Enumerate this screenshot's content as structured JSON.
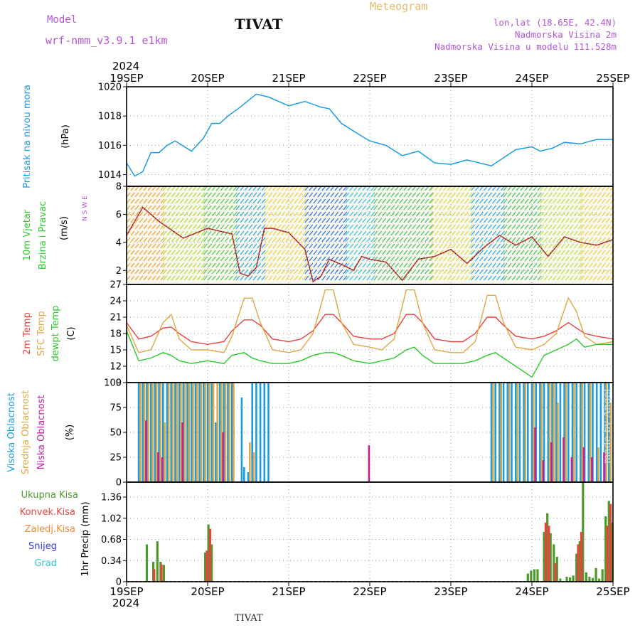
{
  "header": {
    "model_label": "Model",
    "model_name": "wrf-nmm_v3.9.1 e1km",
    "title": "TIVAT",
    "meteogram": "Meteogram",
    "lonlat": "lon,lat (18.65E, 42.4N)",
    "elevation": "Nadmorska Visina 2m",
    "model_elevation": "Nadmorska Visina u modelu 111.528m"
  },
  "footer": {
    "station": "TIVAT",
    "credit": "made by Angel"
  },
  "colors": {
    "pressure": "#1a9de0",
    "temp2m": "#e8433f",
    "sfc": "#e0a843",
    "dewpt": "#2cc92c",
    "high_cloud": "#1a9de0",
    "mid_cloud": "#e0a843",
    "low_cloud": "#c020a0",
    "total_precip": "#4c9a2a",
    "conv_precip": "#e8433f",
    "frz": "#f08a30",
    "snow": "#3a3ad8",
    "graupel": "#30c8c8"
  },
  "chart_data": [
    {
      "type": "line",
      "id": "pressure",
      "ylabel": [
        "Pritisak na nivou mora",
        "(hPa)"
      ],
      "ylim": [
        1013.2,
        1020
      ],
      "yticks": [
        1014,
        1016,
        1018,
        1020
      ],
      "x_days": [
        0,
        0.1,
        0.2,
        0.3,
        0.4,
        0.5,
        0.6,
        0.8,
        0.95,
        1.05,
        1.15,
        1.25,
        1.4,
        1.6,
        1.75,
        2.0,
        2.2,
        2.4,
        2.5,
        2.65,
        2.85,
        3.0,
        3.2,
        3.4,
        3.6,
        3.8,
        4.0,
        4.2,
        4.5,
        4.8,
        5.0,
        5.1,
        5.25,
        5.4,
        5.6,
        5.8,
        6.0
      ],
      "values": [
        1014.8,
        1013.9,
        1014.2,
        1015.5,
        1015.5,
        1016.0,
        1016.3,
        1015.6,
        1016.5,
        1017.5,
        1017.5,
        1018.0,
        1018.6,
        1019.5,
        1019.3,
        1018.7,
        1019.0,
        1018.6,
        1018.5,
        1017.5,
        1016.8,
        1016.3,
        1016.0,
        1015.3,
        1015.6,
        1014.8,
        1014.7,
        1015.0,
        1014.6,
        1015.7,
        1015.9,
        1015.6,
        1015.8,
        1016.2,
        1016.1,
        1016.4,
        1016.4
      ]
    },
    {
      "type": "line",
      "id": "wind",
      "ylabel": [
        "10m Vjetar",
        "Brzina i Pravac",
        "(m/s)"
      ],
      "compass": "N S W E",
      "ylim": [
        1,
        8
      ],
      "yticks": [
        2,
        4,
        6,
        8
      ],
      "x_days": [
        0,
        0.2,
        0.4,
        0.7,
        1.0,
        1.3,
        1.4,
        1.5,
        1.6,
        1.7,
        1.8,
        2.0,
        2.2,
        2.3,
        2.4,
        2.5,
        2.7,
        2.8,
        2.9,
        3.0,
        3.2,
        3.4,
        3.6,
        3.8,
        4.0,
        4.2,
        4.4,
        4.6,
        4.8,
        5.0,
        5.2,
        5.4,
        5.6,
        5.8,
        6.0
      ],
      "values": [
        4.5,
        6.5,
        5.5,
        4.3,
        5.0,
        4.6,
        1.8,
        1.6,
        2.2,
        5.0,
        5.0,
        4.7,
        3.5,
        1.2,
        1.6,
        2.8,
        2.3,
        2.0,
        3.0,
        2.8,
        2.6,
        1.3,
        2.8,
        3.0,
        3.5,
        2.5,
        3.6,
        4.5,
        3.8,
        4.4,
        3.0,
        4.4,
        4.0,
        3.8,
        4.2
      ]
    },
    {
      "type": "line",
      "id": "temperature",
      "ylabel": [
        "2m Temp",
        "SFC Temp",
        "dewpt Temp",
        "(C)"
      ],
      "ylim": [
        9,
        27
      ],
      "yticks": [
        9,
        12,
        15,
        18,
        21,
        24,
        27
      ],
      "x_days": [
        0,
        0.15,
        0.3,
        0.45,
        0.55,
        0.65,
        0.8,
        1.0,
        1.2,
        1.3,
        1.45,
        1.55,
        1.65,
        1.8,
        2.0,
        2.15,
        2.3,
        2.45,
        2.55,
        2.65,
        2.8,
        3.0,
        3.15,
        3.3,
        3.45,
        3.55,
        3.65,
        3.8,
        4.0,
        4.15,
        4.3,
        4.45,
        4.55,
        4.65,
        4.8,
        5.0,
        5.15,
        5.3,
        5.45,
        5.55,
        5.65,
        5.8,
        6.0
      ],
      "series": [
        {
          "name": "2m Temp",
          "values": [
            20.0,
            17.0,
            17.5,
            19.0,
            19.2,
            18.0,
            16.5,
            16.0,
            16.5,
            18.5,
            20.5,
            20.5,
            19.5,
            17.0,
            16.5,
            17.0,
            18.5,
            21.5,
            21.5,
            20.0,
            17.5,
            17.0,
            17.0,
            18.0,
            21.5,
            21.5,
            20.0,
            17.0,
            16.5,
            16.5,
            18.0,
            21.0,
            21.0,
            19.5,
            17.5,
            17.0,
            17.5,
            18.5,
            20.0,
            19.0,
            18.0,
            17.5,
            17.0
          ]
        },
        {
          "name": "SFC Temp",
          "values": [
            19.5,
            14.5,
            15.0,
            20.0,
            21.5,
            17.0,
            15.0,
            15.0,
            14.5,
            17.5,
            24.5,
            24.5,
            20.0,
            15.0,
            14.5,
            15.0,
            18.0,
            26.0,
            26.0,
            20.0,
            16.0,
            15.5,
            15.0,
            17.0,
            26.0,
            26.0,
            20.0,
            15.0,
            14.5,
            14.5,
            16.5,
            25.0,
            25.0,
            20.0,
            15.5,
            15.0,
            16.0,
            18.0,
            24.5,
            22.0,
            17.5,
            16.0,
            16.5
          ]
        },
        {
          "name": "dewpt Temp",
          "values": [
            18.5,
            13.0,
            13.5,
            14.5,
            14.0,
            13.0,
            12.5,
            13.0,
            12.5,
            14.0,
            14.5,
            13.5,
            13.0,
            12.5,
            12.5,
            13.0,
            14.0,
            14.5,
            14.5,
            14.0,
            13.0,
            12.5,
            13.0,
            13.5,
            15.0,
            15.5,
            14.0,
            12.5,
            12.5,
            12.5,
            13.0,
            14.0,
            14.5,
            13.5,
            12.0,
            10.0,
            14.0,
            15.0,
            16.0,
            17.0,
            15.5,
            16.0,
            16.0
          ]
        }
      ]
    },
    {
      "type": "bar",
      "id": "clouds",
      "ylabel": [
        "Visoka Oblacnost",
        "Srednja Oblacnost",
        "Niska Oblacnost",
        "(%)"
      ],
      "ylim": [
        0,
        100
      ],
      "yticks": [
        0,
        25,
        50,
        75,
        100
      ],
      "series": [
        {
          "name": "Visoka Oblacnost",
          "x_days": [
            0.15,
            0.2,
            0.25,
            0.3,
            0.35,
            0.4,
            0.45,
            0.5,
            0.55,
            0.6,
            0.65,
            0.7,
            0.75,
            0.8,
            0.85,
            0.9,
            0.95,
            1.0,
            1.05,
            1.1,
            1.15,
            1.2,
            1.25,
            1.3,
            1.42,
            1.45,
            1.5,
            1.55,
            1.6,
            1.65,
            1.7,
            1.75,
            4.5,
            4.55,
            4.6,
            4.65,
            4.7,
            4.75,
            4.8,
            4.85,
            4.9,
            4.95,
            5.0,
            5.05,
            5.1,
            5.15,
            5.2,
            5.25,
            5.3,
            5.35,
            5.4,
            5.45,
            5.5,
            5.55,
            5.6,
            5.65,
            5.7,
            5.75,
            5.8,
            5.85,
            5.9,
            5.95
          ],
          "values": [
            100,
            100,
            100,
            100,
            100,
            100,
            100,
            100,
            100,
            100,
            100,
            100,
            100,
            100,
            100,
            100,
            100,
            100,
            100,
            60,
            100,
            100,
            100,
            100,
            85,
            15,
            10,
            100,
            100,
            100,
            100,
            100,
            100,
            100,
            100,
            100,
            100,
            100,
            100,
            100,
            100,
            100,
            100,
            100,
            100,
            100,
            100,
            100,
            100,
            100,
            100,
            100,
            100,
            100,
            100,
            100,
            100,
            100,
            100,
            100,
            100,
            100
          ]
        },
        {
          "name": "Srednja Oblacnost",
          "x_days": [
            0.17,
            0.22,
            0.27,
            0.32,
            0.37,
            0.42,
            0.47,
            0.52,
            0.57,
            0.62,
            0.67,
            0.72,
            0.77,
            0.82,
            0.87,
            0.92,
            0.97,
            1.02,
            1.07,
            1.12,
            1.17,
            1.22,
            1.27,
            1.32,
            1.52,
            1.57,
            4.52,
            4.62,
            4.72,
            4.82,
            4.92,
            5.02,
            5.12,
            5.22,
            5.27,
            5.32,
            5.42,
            5.52,
            5.62,
            5.72,
            5.82,
            5.92,
            5.97
          ],
          "values": [
            100,
            100,
            100,
            100,
            100,
            100,
            60,
            100,
            100,
            100,
            100,
            100,
            100,
            100,
            100,
            100,
            100,
            100,
            100,
            100,
            100,
            100,
            100,
            100,
            40,
            30,
            100,
            100,
            100,
            100,
            100,
            100,
            100,
            100,
            100,
            80,
            100,
            100,
            100,
            100,
            35,
            100,
            80
          ]
        },
        {
          "name": "Niska Oblacnost",
          "x_days": [
            0.24,
            0.39,
            0.44,
            0.69,
            1.19,
            2.99,
            5.04,
            5.14,
            5.24,
            5.39,
            5.49,
            5.64,
            5.74,
            5.89
          ],
          "values": [
            62,
            30,
            25,
            60,
            50,
            37,
            55,
            22,
            40,
            45,
            25,
            35,
            25,
            30
          ]
        }
      ]
    },
    {
      "type": "bar",
      "id": "precip",
      "ylabel": [
        "1hr Precip (mm)"
      ],
      "legend": [
        "Ukupna Kisa",
        "Konvek.Kisa",
        "Zaledj.Kisa",
        "Snijeg",
        "Grad"
      ],
      "ylim": [
        0,
        1.6
      ],
      "yticks": [
        0,
        0.34,
        0.68,
        1.02,
        1.36
      ],
      "series": [
        {
          "name": "Ukupna Kisa",
          "x_days": [
            0.25,
            0.33,
            0.38,
            0.42,
            0.46,
            0.5,
            0.97,
            1.01,
            1.05,
            4.95,
            4.99,
            5.03,
            5.07,
            5.15,
            5.19,
            5.23,
            5.27,
            5.31,
            5.35,
            5.43,
            5.47,
            5.51,
            5.55,
            5.59,
            5.63,
            5.67,
            5.71,
            5.75,
            5.79,
            5.83,
            5.87,
            5.91,
            5.95,
            5.99
          ],
          "values": [
            0.6,
            0.32,
            0.65,
            0.32,
            0.27,
            0.0,
            0.47,
            0.92,
            0.6,
            0.13,
            0.18,
            0.2,
            0.2,
            0.8,
            1.1,
            0.78,
            0.6,
            0.4,
            0.05,
            0.08,
            0.07,
            0.1,
            0.45,
            0.65,
            1.6,
            0.15,
            0.08,
            0.06,
            0.22,
            0.05,
            0.2,
            1.05,
            1.3,
            0.95
          ]
        },
        {
          "name": "Konvek.Kisa",
          "x_days": [
            0.34,
            0.43,
            0.99,
            1.03,
            5.17,
            5.21,
            5.29,
            5.57,
            5.61,
            5.93,
            5.97
          ],
          "values": [
            0.2,
            0.28,
            0.5,
            0.85,
            0.95,
            0.9,
            0.3,
            0.6,
            0.8,
            0.9,
            1.25
          ]
        },
        {
          "name": "Zaledj.Kisa",
          "x_days": [],
          "values": []
        },
        {
          "name": "Snijeg",
          "x_days": [],
          "values": []
        },
        {
          "name": "Grad",
          "x_days": [],
          "values": []
        }
      ]
    }
  ],
  "axis": {
    "year": "2024",
    "dates": [
      "19SEP",
      "20SEP",
      "21SEP",
      "22SEP",
      "23SEP",
      "24SEP",
      "25SEP"
    ]
  }
}
